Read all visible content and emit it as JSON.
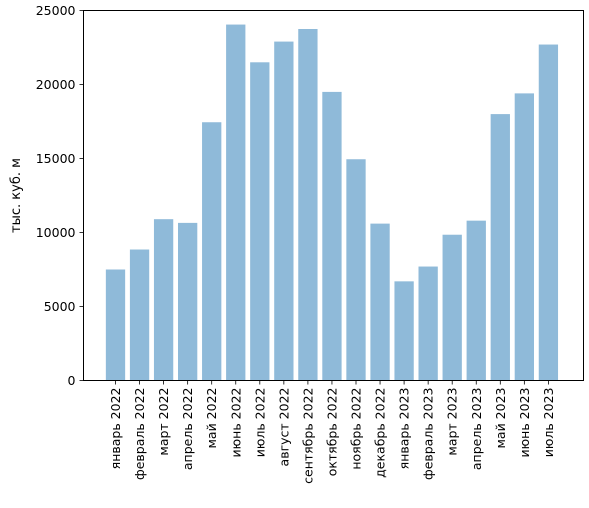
{
  "chart_data": {
    "type": "bar",
    "title": "",
    "xlabel": "",
    "ylabel": "тыс. куб. м",
    "ylim": [
      0,
      25000
    ],
    "yticks": [
      0,
      5000,
      10000,
      15000,
      20000,
      25000
    ],
    "grid": false,
    "bar_color": "#8fbad9",
    "categories": [
      "январь 2022",
      "февраль 2022",
      "март 2022",
      "апрель 2022",
      "май 2022",
      "июнь 2022",
      "июль 2022",
      "август 2022",
      "сентябрь 2022",
      "октябрь 2022",
      "ноябрь 2022",
      "декабрь 2022",
      "январь 2023",
      "февраль 2023",
      "март 2023",
      "апрель 2023",
      "май 2023",
      "июнь 2023",
      "июль 2023"
    ],
    "values": [
      7500,
      8850,
      10900,
      10650,
      17450,
      24050,
      21500,
      22900,
      23750,
      19500,
      14950,
      10600,
      6700,
      7700,
      9850,
      10800,
      18000,
      19400,
      22700
    ]
  }
}
